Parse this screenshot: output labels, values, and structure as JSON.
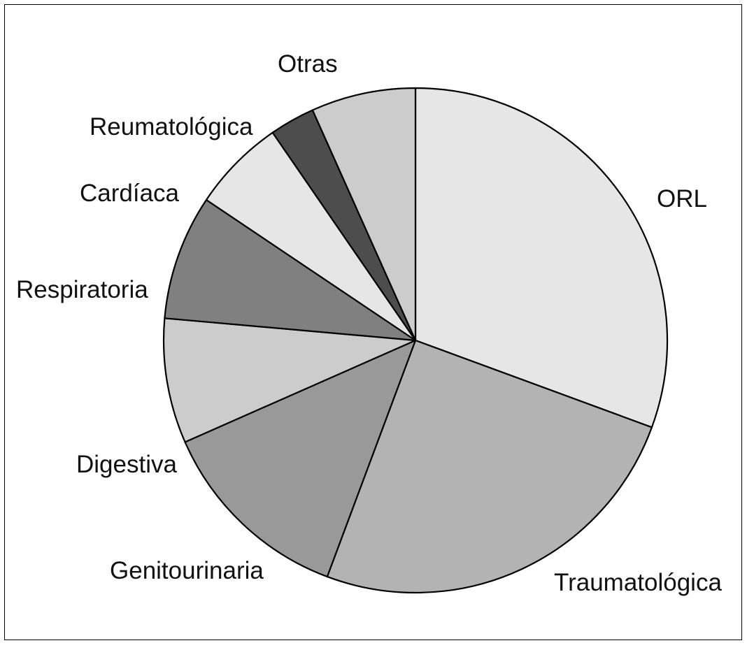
{
  "chart_data": {
    "type": "pie",
    "start": "12 o'clock",
    "direction": "clockwise",
    "slices": [
      {
        "label": "ORL",
        "value": 30.6,
        "color": "#e6e6e6"
      },
      {
        "label": "Traumatológica",
        "value": 25.1,
        "color": "#b3b3b3"
      },
      {
        "label": "Genitourinaria",
        "value": 12.7,
        "color": "#999999"
      },
      {
        "label": "Digestiva",
        "value": 8.0,
        "color": "#cccccc"
      },
      {
        "label": "Respiratoria",
        "value": 8.0,
        "color": "#808080"
      },
      {
        "label": "Cardíaca",
        "value": 6.0,
        "color": "#e6e6e6"
      },
      {
        "label": "Reumatológica",
        "value": 2.9,
        "color": "#4d4d4d"
      },
      {
        "label": "Otras",
        "value": 6.7,
        "color": "#cccccc"
      }
    ]
  }
}
